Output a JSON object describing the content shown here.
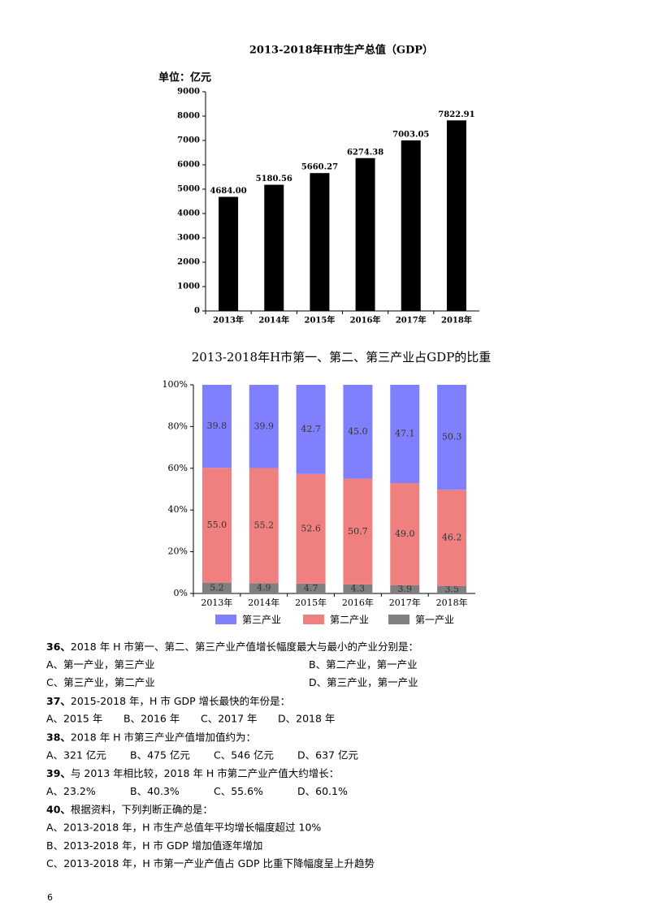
{
  "chart_data": [
    {
      "type": "bar",
      "title": "2013-2018年H市生产总值（GDP）",
      "y_label": "单位：亿元",
      "categories": [
        "2013年",
        "2014年",
        "2015年",
        "2016年",
        "2017年",
        "2018年"
      ],
      "values": [
        4684,
        5180.56,
        5660.27,
        6274.38,
        7003.05,
        7822.91
      ],
      "value_labels": [
        "4684.00",
        "5180.56",
        "5660.27",
        "6274.38",
        "7003.05",
        "7822.91"
      ],
      "color": "#000000",
      "ylim": [
        0,
        9000
      ],
      "yticks": [
        0,
        1000,
        2000,
        3000,
        4000,
        5000,
        6000,
        7000,
        8000,
        9000
      ]
    },
    {
      "type": "stacked_bar",
      "title": "2013-2018年H市第一、第二、第三产业占GDP的比重",
      "categories": [
        "2013年",
        "2014年",
        "2015年",
        "2016年",
        "2017年",
        "2018年"
      ],
      "series": [
        {
          "name": "第三产业",
          "color": "#8080ff",
          "values": [
            39.8,
            39.9,
            42.7,
            45.0,
            47.1,
            50.3
          ],
          "value_labels": [
            "39.8",
            "39.9",
            "42.7",
            "45.0",
            "47.1",
            "50.3"
          ]
        },
        {
          "name": "第二产业",
          "color": "#f08080",
          "values": [
            55.0,
            55.2,
            52.6,
            50.7,
            49.0,
            46.2
          ],
          "value_labels": [
            "55.0",
            "55.2",
            "52.6",
            "50.7",
            "49.0",
            "46.2"
          ]
        },
        {
          "name": "第一产业",
          "color": "#808080",
          "values": [
            5.2,
            4.9,
            4.7,
            4.3,
            3.9,
            3.5
          ],
          "value_labels": [
            "5.2",
            "4.9",
            "4.7",
            "4.3",
            "3.9",
            "3.5"
          ]
        }
      ],
      "ylim": [
        0,
        100
      ],
      "yticks": [
        {
          "value": 0,
          "label": "0%"
        },
        {
          "value": 20,
          "label": "20%"
        },
        {
          "value": 40,
          "label": "40%"
        },
        {
          "value": 60,
          "label": "60%"
        },
        {
          "value": 80,
          "label": "80%"
        },
        {
          "value": 100,
          "label": "100%"
        }
      ],
      "legend": "bottom"
    }
  ],
  "questions": [
    {
      "number": "36、",
      "text": "2018 年 H 市第一、第二、第三产业产值增长幅度最大与最小的产业分别是：",
      "options": [
        "A、第一产业，第三产业",
        "B、第二产业，第一产业",
        "C、第三产业，第二产业",
        "D、第三产业，第一产业"
      ]
    },
    {
      "number": "37、",
      "text": "2015-2018 年，H 市 GDP 增长最快的年份是：",
      "options": [
        "A、2015 年",
        "B、2016 年",
        "C、2017 年",
        "D、2018 年"
      ]
    },
    {
      "number": "38、",
      "text": "2018 年 H 市第三产业产值增加值约为：",
      "options": [
        "A、321 亿元",
        "B、475 亿元",
        "C、546 亿元",
        "D、637 亿元"
      ]
    },
    {
      "number": "39、",
      "text": "与 2013 年相比较，2018 年 H 市第二产业产值大约增长：",
      "options": [
        "A、23.2%",
        "B、40.3%",
        "C、55.6%",
        "D、60.1%"
      ]
    },
    {
      "number": "40、",
      "text": "根据资料，下列判断正确的是：",
      "options": [
        "A、2013-2018 年，H 市生产总值年平均增长幅度超过 10%",
        "B、2013-2018 年，H 市 GDP 增加值逐年增加",
        "C、2013-2018 年，H 市第一产业产值占 GDP 比重下降幅度呈上升趋势"
      ]
    }
  ],
  "page_number": "6"
}
